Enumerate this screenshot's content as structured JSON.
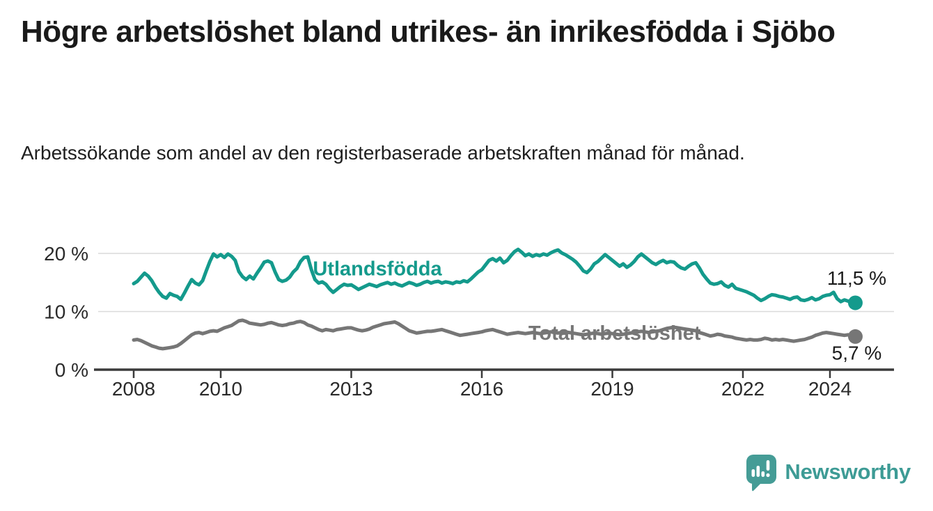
{
  "header": {
    "title": "Högre arbetslöshet bland utrikes- än inrikesfödda i Sjöbo",
    "subtitle": "Arbetssökande som andel av den registerbaserade arbetskraften månad för månad."
  },
  "branding": {
    "name": "Newsworthy",
    "logo_icon": "speech-bubble-bar-chart-icon",
    "logo_color": "#459c96",
    "wordmark_color": "#3d9b95"
  },
  "chart_data": {
    "type": "line",
    "unit": "%",
    "frequency": "monthly",
    "x_start_year": 2008,
    "x_start_month": 1,
    "x_end_year": 2024,
    "x_end_month": 8,
    "xlim": [
      2007.1,
      2025.4
    ],
    "ylim": [
      0,
      24
    ],
    "grid": "horizontal",
    "legend_position": "inline-labels",
    "x_ticks": [
      "2008",
      "2010",
      "2013",
      "2016",
      "2019",
      "2022",
      "2024"
    ],
    "x_tick_years": [
      2008,
      2010,
      2013,
      2016,
      2019,
      2022,
      2024
    ],
    "y_ticks": [
      {
        "value": 0,
        "label": "0 %"
      },
      {
        "value": 10,
        "label": "10 %"
      },
      {
        "value": 20,
        "label": "20 %"
      }
    ],
    "axis_color": "#3b3b3b",
    "grid_color": "#dadada",
    "tick_label_color": "#2a2a2a",
    "value_label_color": "#1c1c1c",
    "series": [
      {
        "name": "Utlandsfödda",
        "color": "#149a8c",
        "end_label": "11,5 %",
        "end_value": 11.5,
        "end_label_position": "above",
        "label_anchor": {
          "x_year": 2013.6,
          "value": 17.4
        },
        "values": [
          14.8,
          15.2,
          15.9,
          16.6,
          16.1,
          15.3,
          14.2,
          13.3,
          12.6,
          12.3,
          13.1,
          12.8,
          12.6,
          12.1,
          13.2,
          14.4,
          15.5,
          14.9,
          14.6,
          15.3,
          17.0,
          18.6,
          19.9,
          19.4,
          19.8,
          19.3,
          19.9,
          19.5,
          18.8,
          16.9,
          16.0,
          15.5,
          16.1,
          15.6,
          16.6,
          17.5,
          18.5,
          18.7,
          18.4,
          16.8,
          15.5,
          15.2,
          15.4,
          15.9,
          16.8,
          17.4,
          18.6,
          19.3,
          19.4,
          17.2,
          15.5,
          14.9,
          15.1,
          14.7,
          13.9,
          13.3,
          13.8,
          14.3,
          14.7,
          14.5,
          14.6,
          14.2,
          13.8,
          14.1,
          14.4,
          14.7,
          14.5,
          14.3,
          14.6,
          14.8,
          15.0,
          14.7,
          14.9,
          14.6,
          14.4,
          14.7,
          15.0,
          14.8,
          14.5,
          14.7,
          15.0,
          15.2,
          14.9,
          15.1,
          15.2,
          14.9,
          15.1,
          15.0,
          14.8,
          15.1,
          15.0,
          15.3,
          15.1,
          15.6,
          16.2,
          16.8,
          17.2,
          18.0,
          18.8,
          19.1,
          18.7,
          19.2,
          18.4,
          18.8,
          19.6,
          20.3,
          20.7,
          20.2,
          19.6,
          19.9,
          19.5,
          19.8,
          19.6,
          19.9,
          19.7,
          20.1,
          20.4,
          20.6,
          20.1,
          19.8,
          19.4,
          19.0,
          18.5,
          17.8,
          17.0,
          16.7,
          17.3,
          18.2,
          18.6,
          19.2,
          19.8,
          19.3,
          18.8,
          18.3,
          17.8,
          18.2,
          17.6,
          18.0,
          18.6,
          19.4,
          19.9,
          19.4,
          18.9,
          18.4,
          18.1,
          18.5,
          18.8,
          18.4,
          18.6,
          18.5,
          17.9,
          17.5,
          17.3,
          17.8,
          18.2,
          18.4,
          17.5,
          16.4,
          15.6,
          14.9,
          14.7,
          14.8,
          15.1,
          14.5,
          14.2,
          14.7,
          14.0,
          13.8,
          13.6,
          13.4,
          13.1,
          12.8,
          12.3,
          11.9,
          12.2,
          12.6,
          12.9,
          12.8,
          12.6,
          12.5,
          12.3,
          12.1,
          12.4,
          12.5,
          12.0,
          11.9,
          12.1,
          12.4,
          12.0,
          12.2,
          12.6,
          12.8,
          12.9,
          13.3,
          12.2,
          11.7,
          12.0,
          11.8,
          11.7,
          11.5
        ]
      },
      {
        "name": "Total arbetslöshet",
        "color": "#767676",
        "end_label": "5,7 %",
        "end_value": 5.7,
        "end_label_position": "below",
        "label_anchor": {
          "x_year": 2019.05,
          "value": 6.35
        },
        "values": [
          5.1,
          5.2,
          5.0,
          4.7,
          4.4,
          4.1,
          3.9,
          3.7,
          3.6,
          3.7,
          3.8,
          3.9,
          4.1,
          4.5,
          5.0,
          5.5,
          6.0,
          6.3,
          6.4,
          6.2,
          6.4,
          6.6,
          6.7,
          6.6,
          6.9,
          7.2,
          7.4,
          7.6,
          8.0,
          8.4,
          8.5,
          8.3,
          8.0,
          7.9,
          7.8,
          7.7,
          7.8,
          8.0,
          8.1,
          7.9,
          7.7,
          7.6,
          7.7,
          7.9,
          8.0,
          8.2,
          8.3,
          8.1,
          7.7,
          7.5,
          7.2,
          6.9,
          6.7,
          6.9,
          6.8,
          6.7,
          6.9,
          7.0,
          7.1,
          7.2,
          7.2,
          7.0,
          6.8,
          6.7,
          6.8,
          7.0,
          7.3,
          7.5,
          7.7,
          7.9,
          8.0,
          8.1,
          8.2,
          7.9,
          7.5,
          7.1,
          6.7,
          6.5,
          6.3,
          6.4,
          6.5,
          6.6,
          6.6,
          6.7,
          6.8,
          6.9,
          6.7,
          6.5,
          6.3,
          6.1,
          5.9,
          6.0,
          6.1,
          6.2,
          6.3,
          6.4,
          6.5,
          6.7,
          6.8,
          6.9,
          6.7,
          6.5,
          6.3,
          6.1,
          6.2,
          6.3,
          6.4,
          6.3,
          6.2,
          6.3,
          6.4,
          6.3,
          6.2,
          6.3,
          6.4,
          6.5,
          6.4,
          6.3,
          6.4,
          6.5,
          6.4,
          6.3,
          6.2,
          6.1,
          6.0,
          6.1,
          6.2,
          6.3,
          6.2,
          6.1,
          6.2,
          6.3,
          6.2,
          6.1,
          6.0,
          6.1,
          6.2,
          6.3,
          6.4,
          6.5,
          6.6,
          6.5,
          6.4,
          6.5,
          6.6,
          6.7,
          6.9,
          7.1,
          7.2,
          7.3,
          7.2,
          7.1,
          7.0,
          6.9,
          6.8,
          6.7,
          6.4,
          6.2,
          6.0,
          5.8,
          5.9,
          6.1,
          6.0,
          5.8,
          5.7,
          5.6,
          5.4,
          5.3,
          5.2,
          5.1,
          5.2,
          5.1,
          5.1,
          5.2,
          5.4,
          5.3,
          5.1,
          5.2,
          5.1,
          5.2,
          5.1,
          5.0,
          4.9,
          5.0,
          5.1,
          5.2,
          5.4,
          5.6,
          5.9,
          6.1,
          6.3,
          6.4,
          6.3,
          6.2,
          6.1,
          6.0,
          5.9,
          6.0,
          5.9,
          5.7
        ]
      }
    ]
  }
}
